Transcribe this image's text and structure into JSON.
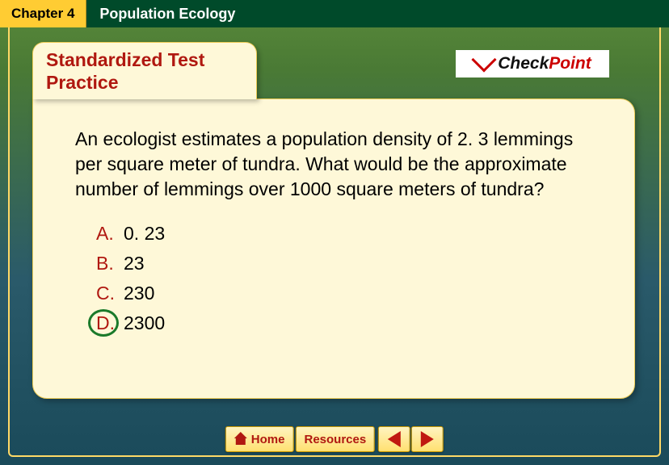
{
  "header": {
    "chapter_label": "Chapter 4",
    "title": "Population Ecology"
  },
  "folder": {
    "tab_title": "Standardized Test Practice",
    "checkpoint": {
      "check": "Check",
      "point": "Point"
    }
  },
  "question": {
    "text": "An ecologist estimates a population density of 2. 3 lemmings per square meter of tundra. What would be the approximate number of lemmings over 1000 square meters of tundra?"
  },
  "answers": [
    {
      "letter": "A.",
      "text": "0. 23",
      "correct": false
    },
    {
      "letter": "B.",
      "text": "23",
      "correct": false
    },
    {
      "letter": "C.",
      "text": "230",
      "correct": false
    },
    {
      "letter": "D.",
      "text": "2300",
      "correct": true
    }
  ],
  "nav": {
    "home": "Home",
    "resources": "Resources"
  },
  "colors": {
    "accent_red": "#b01810",
    "tab_yellow": "#ffcc33",
    "folder_bg": "#fef8d8",
    "correct_green": "#1a7a2a"
  }
}
